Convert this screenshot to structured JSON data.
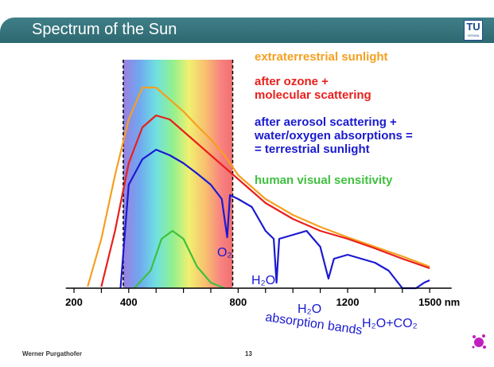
{
  "header": {
    "title": "Spectrum of the Sun",
    "logo": "TU",
    "logo_sub": "VIENNA"
  },
  "chart_data": {
    "type": "line",
    "xlim": [
      170,
      1580
    ],
    "ylim": [
      0,
      270
    ],
    "xticks": [
      200,
      400,
      800,
      1200,
      {
        "value": 1500,
        "label": "1500 nm"
      }
    ],
    "minor_xticks": [
      300,
      500,
      600,
      700,
      900,
      1000,
      1100,
      1300,
      1400
    ],
    "visible_band": [
      380,
      780
    ],
    "series": [
      {
        "name": "extraterrestrial sunlight",
        "color": "#f5a020",
        "x": [
          250,
          300,
          350,
          400,
          450,
          500,
          550,
          600,
          650,
          700,
          750,
          800,
          900,
          1000,
          1100,
          1200,
          1300,
          1400,
          1500
        ],
        "values": [
          2,
          62,
          142,
          212,
          252,
          252,
          237,
          222,
          204,
          187,
          167,
          142,
          112,
          92,
          77,
          64,
          52,
          40,
          27
        ]
      },
      {
        "name": "after ozone +\nmolecular scattering",
        "color": "#e8201c",
        "x": [
          300,
          350,
          400,
          450,
          500,
          550,
          600,
          650,
          700,
          750,
          800,
          900,
          1000,
          1100,
          1200,
          1300,
          1400,
          1500
        ],
        "values": [
          2,
          72,
          157,
          202,
          217,
          212,
          197,
          182,
          167,
          152,
          137,
          107,
          87,
          72,
          62,
          50,
          37,
          25
        ]
      },
      {
        "name": "after aerosol scattering +\nwater/oxygen absorptions =\n= terrestrial sunlight",
        "color": "#1a1ad0",
        "x": [
          370,
          400,
          450,
          500,
          550,
          600,
          650,
          700,
          740,
          760,
          770,
          800,
          850,
          900,
          930,
          940,
          950,
          1000,
          1050,
          1100,
          1130,
          1150,
          1200,
          1250,
          1300,
          1350,
          1400,
          1450,
          1480,
          1500
        ],
        "values": [
          0,
          130,
          162,
          174,
          167,
          157,
          144,
          130,
          112,
          64,
          117,
          112,
          102,
          72,
          62,
          7,
          62,
          67,
          72,
          52,
          12,
          37,
          42,
          37,
          32,
          22,
          0,
          0,
          7,
          10
        ]
      },
      {
        "name": "human visual sensitivity",
        "color": "#40c040",
        "x": [
          420,
          480,
          520,
          560,
          600,
          650,
          700,
          750
        ],
        "values": [
          0,
          22,
          62,
          72,
          62,
          27,
          7,
          0
        ]
      }
    ],
    "annotations": [
      "O₂",
      "H₂O",
      "H₂O",
      "absorption bands",
      "H₂O+CO₂"
    ]
  },
  "footer": {
    "author": "Werner Purgathofer",
    "page": "13"
  }
}
